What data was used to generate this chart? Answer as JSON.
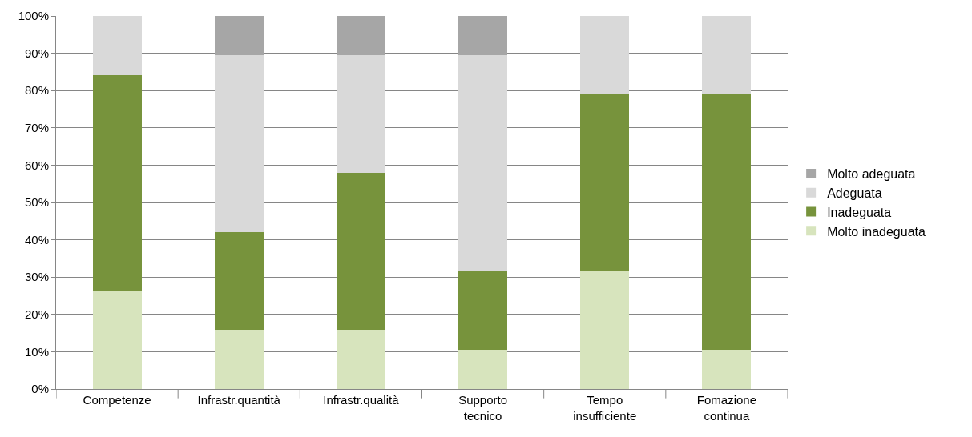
{
  "chart_data": {
    "type": "bar",
    "stacked": true,
    "categories": [
      "Competenze",
      "Infrastr.quantità",
      "Infrastr.qualità",
      "Supporto\ntecnico",
      "Tempo\ninsufficiente",
      "Fomazione\ncontinua"
    ],
    "series": [
      {
        "name": "Molto inadeguata",
        "color": "#d7e4bd",
        "values": [
          26.3,
          15.8,
          15.8,
          10.5,
          31.6,
          10.5
        ]
      },
      {
        "name": "Inadeguata",
        "color": "#77933c",
        "values": [
          57.9,
          26.3,
          42.1,
          21.1,
          47.4,
          68.4
        ]
      },
      {
        "name": "Adeguata",
        "color": "#d9d9d9",
        "values": [
          15.8,
          47.4,
          31.6,
          57.9,
          21.0,
          21.1
        ]
      },
      {
        "name": "Molto adeguata",
        "color": "#a6a6a6",
        "values": [
          0,
          10.5,
          10.5,
          10.5,
          0,
          0
        ]
      }
    ],
    "ylim": [
      0,
      100
    ],
    "yticks": [
      {
        "value": 0,
        "label": "0%"
      },
      {
        "value": 10,
        "label": "10%"
      },
      {
        "value": 20,
        "label": "20%"
      },
      {
        "value": 30,
        "label": "30%"
      },
      {
        "value": 40,
        "label": "40%"
      },
      {
        "value": 50,
        "label": "50%"
      },
      {
        "value": 60,
        "label": "60%"
      },
      {
        "value": 70,
        "label": "70%"
      },
      {
        "value": 80,
        "label": "80%"
      },
      {
        "value": 90,
        "label": "90%"
      },
      {
        "value": 100,
        "label": "100%"
      }
    ],
    "grid": "y",
    "legend": "right"
  }
}
